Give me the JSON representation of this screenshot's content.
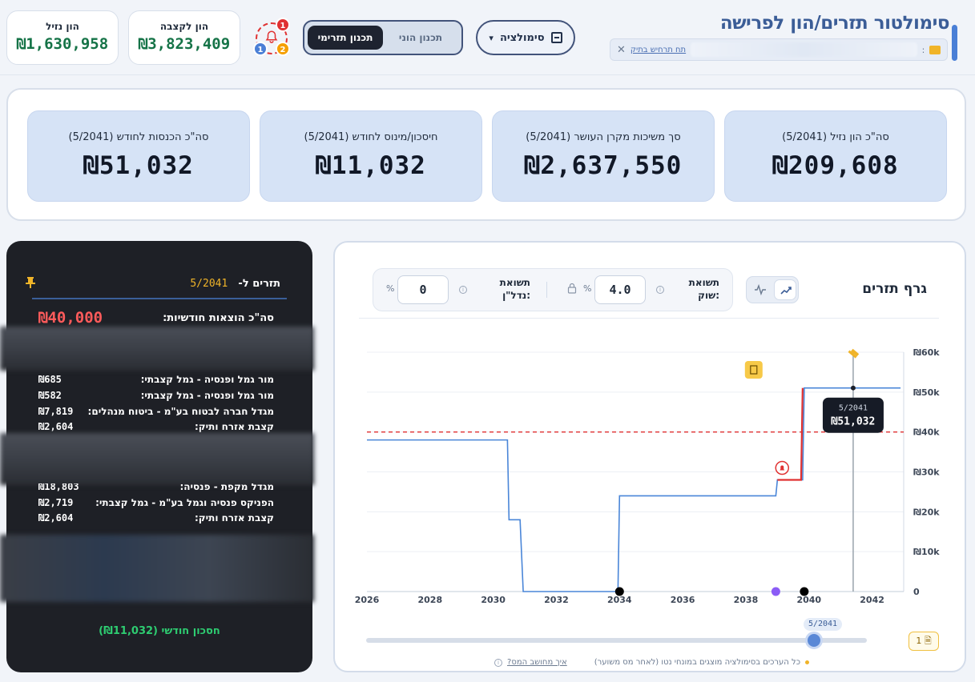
{
  "header": {
    "title": "סימולטור תזרים/הון לפרישה",
    "case_link": "תח תרחיש בתיק",
    "simulation_label": "סימולציה",
    "plan_tabs": [
      "תכנון תזרימי",
      "תכנון הוני"
    ],
    "badges": [
      "1",
      "2",
      "1"
    ],
    "liquid_capital": {
      "label": "הון נזיל",
      "value": "₪1,630,958"
    },
    "annuity_capital": {
      "label": "הון לקצבה",
      "value": "₪3,823,409"
    }
  },
  "summary": [
    {
      "label": "סה\"כ הון נזיל (5/2041)",
      "value": "₪209,608"
    },
    {
      "label": "סך משיכות מקרן העושר (5/2041)",
      "value": "₪2,637,550"
    },
    {
      "label": "חיסכון/מינוס לחודש (5/2041)",
      "value": "₪11,032"
    },
    {
      "label": "סה\"כ הכנסות לחודש (5/2041)",
      "value": "₪51,032"
    }
  ],
  "cashflow": {
    "title": "תזרים ל-",
    "date": "5/2041",
    "expense_label": "סה\"כ הוצאות חודשיות:",
    "expense_value": "₪40,000",
    "items_a": [
      {
        "label": "מור גמל ופנסיה - גמל קצבתי:",
        "value": "₪685"
      },
      {
        "label": "מור גמל ופנסיה - גמל קצבתי:",
        "value": "₪582"
      },
      {
        "label": "מגדל חברה לבטוח בע\"מ - ביטוח מנהלים:",
        "value": "₪7,819"
      },
      {
        "label": "קצבת אזרח ותיק:",
        "value": "₪2,604"
      }
    ],
    "items_b": [
      {
        "label": "מגדל מקפת - פנסיה:",
        "value": "₪18,803"
      },
      {
        "label": "הפניקס פנסיה וגמל בע\"מ - גמל קצבתי:",
        "value": "₪2,719"
      },
      {
        "label": "קצבת אזרח ותיק:",
        "value": "₪2,604"
      }
    ],
    "savings_text": "חסכון חודשי (₪11,032)"
  },
  "chart_panel": {
    "title": "גרף תזרים",
    "market_return_label": "תשואת שוק:",
    "market_return_value": "4.0",
    "realestate_return_label": "תשואת נדל\"ן:",
    "realestate_return_value": "0",
    "percent": "%",
    "slider_value": "5/2041",
    "note_count": "1",
    "footnote": "כל הערכים בסימולציה מוצגים במונחי נטו (לאחר מס משוער)",
    "tax_link": "איך מחושב המס?",
    "tooltip_date": "5/2041",
    "tooltip_value": "₪51,032"
  },
  "chart_data": {
    "type": "line",
    "x_ticks": [
      "2026",
      "2028",
      "2030",
      "2032",
      "2034",
      "2036",
      "2038",
      "2040",
      "2042"
    ],
    "y_ticks": [
      "0",
      "₪10k",
      "₪20k",
      "₪30k",
      "₪40k",
      "₪50k",
      "₪60k"
    ],
    "xlim": [
      2026,
      2043
    ],
    "ylim": [
      0,
      60000
    ],
    "expense_line": 40000,
    "series": [
      {
        "color": "#4a86d8",
        "points": [
          [
            2026.0,
            38000
          ],
          [
            2030.45,
            38000
          ],
          [
            2030.5,
            18000
          ],
          [
            2030.85,
            18000
          ],
          [
            2030.95,
            0
          ],
          [
            2033.95,
            0
          ],
          [
            2034.0,
            24000
          ],
          [
            2038.95,
            24000
          ],
          [
            2039.0,
            28000
          ],
          [
            2039.8,
            28000
          ],
          [
            2039.85,
            51032
          ],
          [
            2042.9,
            51032
          ]
        ]
      }
    ],
    "deficit_segment": [
      [
        2039.0,
        28000
      ],
      [
        2039.75,
        28000
      ],
      [
        2039.8,
        51032
      ]
    ],
    "events": [
      {
        "year": 2034.0,
        "color": "#000000"
      },
      {
        "year": 2038.95,
        "color": "#8b5cf6"
      },
      {
        "year": 2039.85,
        "color": "#000000"
      }
    ],
    "cursor_year": 2041.4
  }
}
